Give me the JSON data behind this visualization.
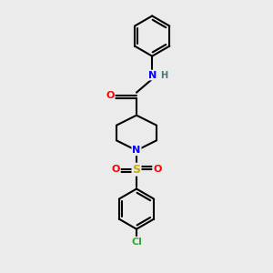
{
  "background_color": "#ebebeb",
  "bond_color": "#000000",
  "atom_colors": {
    "N": "#0000ff",
    "O": "#ff0000",
    "S": "#ccaa00",
    "Cl": "#33aa33",
    "H": "#447777",
    "C": "#000000"
  },
  "figsize": [
    3.0,
    3.0
  ],
  "dpi": 100,
  "xlim": [
    0,
    10
  ],
  "ylim": [
    0,
    12
  ]
}
